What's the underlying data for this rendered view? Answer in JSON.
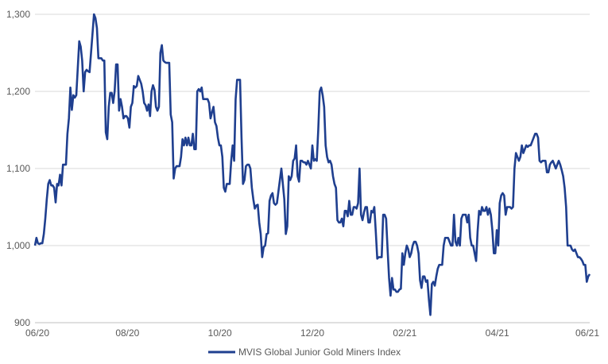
{
  "chart_data": {
    "type": "line",
    "title": "",
    "xlabel": "",
    "ylabel": "",
    "ylim": [
      900,
      1300
    ],
    "y_ticks": [
      900,
      1000,
      1100,
      1200,
      1300
    ],
    "y_tick_labels": [
      "900",
      "1,000",
      "1,100",
      "1,200",
      "1,300"
    ],
    "x_tick_labels": [
      "06/20",
      "08/20",
      "10/20",
      "12/20",
      "02/21",
      "04/21",
      "06/21"
    ],
    "grid": "horizontal",
    "legend_position": "bottom",
    "series_color": "#1f3f8f",
    "series": [
      {
        "name": "MVIS Global Junior Gold Miners Index",
        "x_note": "",
        "values": [
          1000,
          1010,
          1003,
          1002,
          1003,
          1003,
          1015,
          1035,
          1060,
          1080,
          1085,
          1078,
          1078,
          1075,
          1056,
          1080,
          1078,
          1092,
          1078,
          1105,
          1105,
          1105,
          1145,
          1165,
          1205,
          1176,
          1195,
          1192,
          1195,
          1230,
          1265,
          1258,
          1240,
          1200,
          1225,
          1228,
          1226,
          1225,
          1250,
          1275,
          1300,
          1295,
          1282,
          1243,
          1243,
          1243,
          1240,
          1240,
          1147,
          1138,
          1180,
          1198,
          1198,
          1185,
          1200,
          1235,
          1235,
          1175,
          1190,
          1180,
          1165,
          1168,
          1168,
          1165,
          1153,
          1180,
          1185,
          1207,
          1205,
          1207,
          1220,
          1215,
          1210,
          1200,
          1185,
          1182,
          1175,
          1183,
          1168,
          1200,
          1208,
          1202,
          1180,
          1175,
          1180,
          1250,
          1260,
          1240,
          1238,
          1237,
          1237,
          1237,
          1170,
          1160,
          1087,
          1100,
          1103,
          1103,
          1103,
          1115,
          1138,
          1130,
          1140,
          1130,
          1140,
          1130,
          1130,
          1145,
          1125,
          1125,
          1200,
          1203,
          1200,
          1205,
          1190,
          1190,
          1190,
          1190,
          1185,
          1165,
          1173,
          1180,
          1160,
          1155,
          1140,
          1130,
          1130,
          1115,
          1075,
          1070,
          1080,
          1080,
          1080,
          1110,
          1130,
          1110,
          1190,
          1215,
          1215,
          1215,
          1140,
          1080,
          1085,
          1103,
          1105,
          1105,
          1100,
          1075,
          1060,
          1048,
          1052,
          1053,
          1030,
          1015,
          985,
          998,
          1000,
          1015,
          1016,
          1058,
          1065,
          1068,
          1055,
          1053,
          1055,
          1070,
          1085,
          1100,
          1080,
          1060,
          1015,
          1025,
          1090,
          1085,
          1090,
          1110,
          1113,
          1130,
          1090,
          1083,
          1110,
          1110,
          1108,
          1108,
          1105,
          1110,
          1105,
          1100,
          1130,
          1110,
          1112,
          1110,
          1150,
          1200,
          1205,
          1195,
          1180,
          1130,
          1115,
          1108,
          1110,
          1105,
          1090,
          1080,
          1075,
          1033,
          1030,
          1030,
          1035,
          1025,
          1045,
          1045,
          1038,
          1058,
          1040,
          1040,
          1050,
          1050,
          1048,
          1055,
          1100,
          1040,
          1033,
          1043,
          1050,
          1050,
          1030,
          1030,
          1045,
          1043,
          1050,
          1018,
          983,
          985,
          985,
          985,
          1040,
          1040,
          1035,
          995,
          958,
          935,
          958,
          943,
          943,
          940,
          940,
          943,
          944,
          990,
          975,
          990,
          1000,
          995,
          985,
          990,
          1000,
          1005,
          1005,
          1000,
          990,
          955,
          945,
          960,
          960,
          953,
          955,
          930,
          910,
          950,
          953,
          948,
          960,
          970,
          975,
          975,
          975,
          1000,
          1010,
          1010,
          1010,
          1005,
          1000,
          1000,
          1040,
          1005,
          1000,
          1010,
          1000,
          1035,
          1040,
          1040,
          1040,
          1030,
          1040,
          1010,
          1000,
          1000,
          990,
          980,
          1018,
          1045,
          1040,
          1050,
          1045,
          1045,
          1050,
          1040,
          1048,
          1040,
          1020,
          990,
          990,
          1020,
          1000,
          1055,
          1065,
          1068,
          1065,
          1040,
          1050,
          1050,
          1050,
          1048,
          1050,
          1100,
          1120,
          1115,
          1110,
          1115,
          1130,
          1120,
          1125,
          1130,
          1128,
          1130,
          1130,
          1135,
          1140,
          1145,
          1145,
          1140,
          1110,
          1108,
          1110,
          1110,
          1110,
          1095,
          1095,
          1105,
          1108,
          1110,
          1105,
          1100,
          1105,
          1110,
          1105,
          1098,
          1090,
          1075,
          1050,
          1000,
          1000,
          1000,
          995,
          993,
          995,
          990,
          985,
          985,
          983,
          980,
          975,
          975,
          953,
          960,
          963
        ]
      }
    ]
  }
}
